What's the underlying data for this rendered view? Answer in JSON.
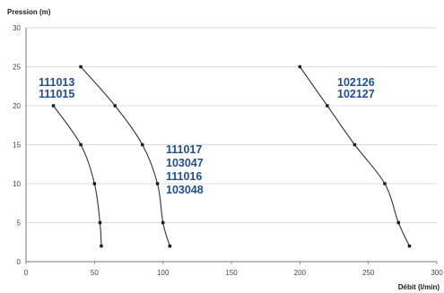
{
  "chart_data": {
    "type": "line",
    "title": "",
    "ylabel": "Pression (m)",
    "xlabel": "Débit (l/min)",
    "xlim": [
      0,
      300
    ],
    "ylim": [
      0,
      30
    ],
    "xticks": [
      0,
      50,
      100,
      150,
      200,
      250,
      300
    ],
    "yticks": [
      0,
      5,
      10,
      15,
      20,
      25,
      30
    ],
    "grid": "horizontal",
    "colors": {
      "line": "#333333",
      "marker": "#1a1a1a",
      "grid": "#cfcfcf",
      "label": "#1f4f8f"
    },
    "series": [
      {
        "labels": [
          "111013",
          "111015"
        ],
        "x": [
          20,
          40,
          50,
          54,
          55
        ],
        "y": [
          20,
          15,
          10,
          5,
          2
        ]
      },
      {
        "labels": [
          "111017",
          "103047",
          "111016",
          "103048"
        ],
        "x": [
          40,
          65,
          85,
          96,
          100,
          105
        ],
        "y": [
          25,
          20,
          15,
          10,
          5,
          2
        ]
      },
      {
        "labels": [
          "102126",
          "102127"
        ],
        "x": [
          200,
          220,
          240,
          262,
          272,
          280
        ],
        "y": [
          25,
          20,
          15,
          10,
          5,
          2
        ]
      }
    ]
  }
}
